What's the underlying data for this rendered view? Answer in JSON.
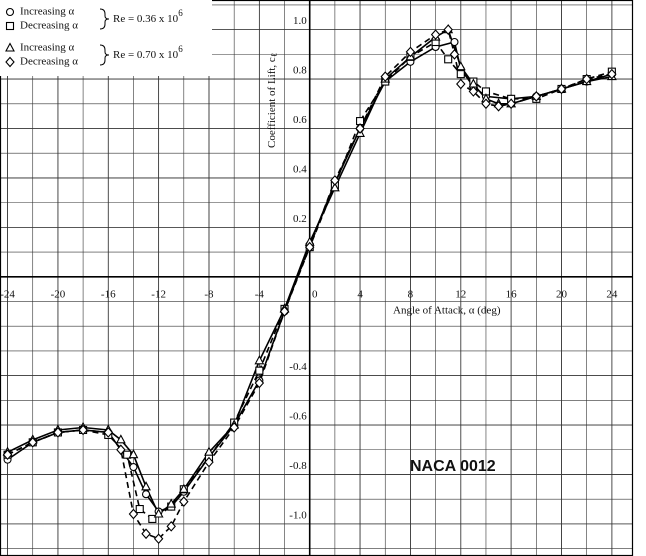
{
  "chart_data": {
    "type": "line",
    "x_label": "Angle of Attack, α (deg)",
    "y_label": "Coefficient of Lift, c",
    "y_label_sub": "ℓ",
    "annotation": "NACA 0012",
    "xlim": [
      -24.6,
      25.6
    ],
    "ylim": [
      -1.13,
      1.12
    ],
    "xticks": [
      -24,
      -20,
      -16,
      -12,
      -8,
      -4,
      0,
      4,
      8,
      12,
      16,
      20,
      24
    ],
    "yticks": [
      {
        "value": -1,
        "label": "-1.0"
      },
      -0.8,
      -0.6,
      -0.4,
      0.2,
      0.4,
      0.6,
      0.8,
      {
        "value": 1,
        "label": "1.0"
      }
    ],
    "grid": true,
    "re_labels": [
      {
        "text": "Re = 0.36 x 10",
        "exp": "6"
      },
      {
        "text": "Re = 0.70 x 10",
        "exp": "6"
      }
    ],
    "series": [
      {
        "name": "Increasing α",
        "color": "#000000",
        "marker": "circle",
        "dashed": false,
        "x": [
          -24,
          -22,
          -20,
          -18,
          -16,
          -14,
          -13,
          -12,
          -11,
          -10,
          -8,
          -6,
          -4,
          -2,
          0,
          2,
          4,
          6,
          8,
          10,
          11.5,
          12,
          13,
          14,
          16,
          18,
          20,
          22,
          24
        ],
        "values": [
          -0.74,
          -0.67,
          -0.63,
          -0.62,
          -0.63,
          -0.77,
          -0.88,
          -0.95,
          -0.93,
          -0.87,
          -0.73,
          -0.6,
          -0.42,
          -0.14,
          0.13,
          0.38,
          0.6,
          0.79,
          0.87,
          0.93,
          0.95,
          0.84,
          0.77,
          0.73,
          0.72,
          0.73,
          0.76,
          0.79,
          0.82
        ]
      },
      {
        "name": "Decreasing α",
        "color": "#000000",
        "marker": "square",
        "dashed": true,
        "x": [
          -24,
          -22,
          -20,
          -18,
          -16,
          -14.5,
          -13.5,
          -12.5,
          -11,
          -10,
          -8,
          -6,
          -4,
          -2,
          0,
          2,
          4,
          6,
          8,
          10,
          11,
          12,
          13,
          14,
          16,
          18,
          20,
          22,
          24
        ],
        "values": [
          -0.72,
          -0.67,
          -0.63,
          -0.62,
          -0.64,
          -0.72,
          -0.94,
          -0.98,
          -0.93,
          -0.86,
          -0.73,
          -0.59,
          -0.38,
          -0.13,
          0.12,
          0.37,
          0.63,
          0.79,
          0.89,
          0.95,
          0.88,
          0.82,
          0.79,
          0.75,
          0.72,
          0.72,
          0.76,
          0.8,
          0.83
        ]
      },
      {
        "name": "Increasing α",
        "color": "#000000",
        "marker": "triangle",
        "dashed": false,
        "x": [
          -24,
          -22,
          -20,
          -18,
          -16,
          -15,
          -14,
          -13,
          -12,
          -11,
          -10,
          -8,
          -6,
          -4,
          -2,
          0,
          2,
          4,
          6,
          8,
          10,
          11,
          12,
          13,
          14,
          15,
          16,
          18,
          20,
          22,
          24
        ],
        "values": [
          -0.71,
          -0.66,
          -0.62,
          -0.61,
          -0.62,
          -0.66,
          -0.72,
          -0.85,
          -0.96,
          -0.92,
          -0.86,
          -0.71,
          -0.6,
          -0.34,
          -0.13,
          0.14,
          0.36,
          0.58,
          0.8,
          0.89,
          0.97,
          1.0,
          0.85,
          0.78,
          0.72,
          0.7,
          0.7,
          0.73,
          0.76,
          0.79,
          0.81
        ]
      },
      {
        "name": "Decreasing α",
        "color": "#000000",
        "marker": "diamond",
        "dashed": true,
        "x": [
          -24,
          -22,
          -20,
          -18,
          -16,
          -15,
          -14,
          -13,
          -12,
          -11,
          -10,
          -8,
          -6,
          -4,
          -2,
          0,
          2,
          4,
          6,
          8,
          10,
          11,
          11.5,
          12,
          13,
          14,
          15,
          16,
          18,
          20,
          22,
          24
        ],
        "values": [
          -0.72,
          -0.67,
          -0.63,
          -0.62,
          -0.63,
          -0.7,
          -0.96,
          -1.04,
          -1.06,
          -1.01,
          -0.91,
          -0.75,
          -0.61,
          -0.43,
          -0.14,
          0.12,
          0.39,
          0.6,
          0.81,
          0.91,
          0.98,
          1.0,
          0.9,
          0.78,
          0.75,
          0.7,
          0.69,
          0.7,
          0.73,
          0.76,
          0.8,
          0.82
        ]
      }
    ]
  }
}
